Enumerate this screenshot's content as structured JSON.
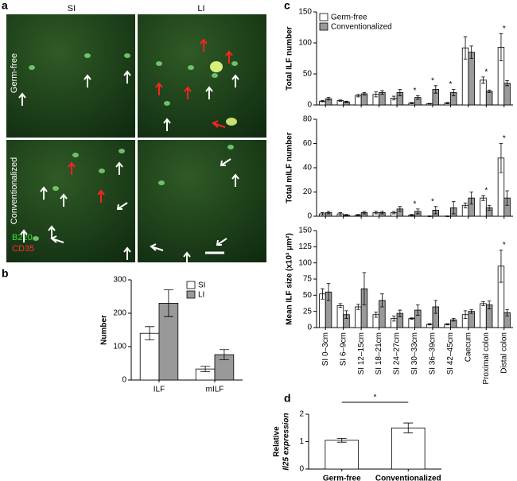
{
  "panel_labels": [
    "a",
    "b",
    "c",
    "d"
  ],
  "panel_a": {
    "columns": [
      "SI",
      "LI"
    ],
    "rows": [
      "Germ-free",
      "Conventionalized"
    ],
    "stains": [
      "B220",
      "CD35"
    ]
  },
  "chart_data": [
    {
      "type": "bar",
      "ylabel": [
        "Number"
      ],
      "categories": [
        "ILF",
        "mILF"
      ],
      "series": [
        {
          "name": "SI",
          "color": "#ffffff",
          "values": [
            140,
            33
          ],
          "errors": [
            20,
            8
          ]
        },
        {
          "name": "LI",
          "color": "#999999",
          "values": [
            230,
            76
          ],
          "errors": [
            40,
            15
          ]
        }
      ],
      "ylim": [
        0,
        300
      ],
      "yticks": [
        0,
        100,
        200,
        300
      ],
      "legend": "upper right"
    },
    {
      "type": "bar",
      "ylabel": [
        "Total ILF number"
      ],
      "series": [
        {
          "name": "Germ-free",
          "color": "#ffffff",
          "values": [
            6,
            7,
            15,
            17,
            11,
            3,
            2,
            3,
            92,
            40,
            93
          ],
          "errors": [
            1,
            1,
            2,
            4,
            3,
            1,
            0.5,
            1,
            18,
            5,
            22
          ]
        },
        {
          "name": "Conventionalized",
          "color": "#999999",
          "values": [
            10,
            5,
            18,
            20,
            20,
            12,
            25,
            20,
            85,
            22,
            35
          ],
          "errors": [
            2,
            1,
            2,
            3,
            5,
            3,
            6,
            5,
            10,
            2,
            4
          ]
        }
      ],
      "significance": [
        null,
        null,
        null,
        null,
        null,
        "*",
        "*",
        "*",
        null,
        "*",
        "*"
      ],
      "ylim": [
        0,
        150
      ],
      "yticks": [
        0,
        50,
        100,
        150
      ],
      "legend": "upper left"
    },
    {
      "type": "bar",
      "ylabel": [
        "Total mILF number"
      ],
      "series": [
        {
          "color": "#ffffff",
          "values": [
            2,
            2,
            1,
            3,
            3,
            1,
            0,
            0,
            9,
            15,
            48
          ],
          "errors": [
            1,
            1,
            0.5,
            1,
            1,
            0.5,
            0.3,
            0.3,
            2,
            2,
            12
          ]
        },
        {
          "color": "#999999",
          "values": [
            3,
            1,
            3,
            3,
            6,
            4,
            5,
            7,
            15,
            7,
            15
          ],
          "errors": [
            1,
            0.5,
            1,
            1,
            2,
            2,
            3,
            5,
            5,
            2,
            6
          ]
        }
      ],
      "significance": [
        null,
        null,
        null,
        null,
        null,
        "*",
        "*",
        null,
        null,
        "*",
        "*"
      ],
      "ylim": [
        0,
        80
      ],
      "yticks": [
        0,
        20,
        40,
        60,
        80
      ]
    },
    {
      "type": "bar",
      "ylabel": [
        "Mean ILF size (x10³ μm²)"
      ],
      "categories": [
        "SI 0–3cm",
        "SI 6–9cm",
        "SI 12–15cm",
        "SI 18–21cm",
        "SI 24–27cm",
        "SI 30–33cm",
        "SI 36–39cm",
        "SI 42–45cm",
        "Caecum",
        "Proximal colon",
        "Distal colon"
      ],
      "series": [
        {
          "color": "#ffffff",
          "values": [
            52,
            34,
            32,
            20,
            14,
            14,
            5,
            5,
            20,
            37,
            95
          ],
          "errors": [
            8,
            3,
            4,
            4,
            4,
            1,
            1,
            1,
            6,
            3,
            25
          ]
        },
        {
          "color": "#999999",
          "values": [
            55,
            20,
            60,
            42,
            22,
            27,
            32,
            12,
            25,
            35,
            23
          ],
          "errors": [
            13,
            6,
            25,
            10,
            5,
            8,
            10,
            2,
            3,
            6,
            5
          ]
        }
      ],
      "significance": [
        null,
        null,
        null,
        null,
        null,
        null,
        null,
        null,
        null,
        null,
        "*"
      ],
      "ylim": [
        0,
        150
      ],
      "yticks": [
        0,
        25,
        50,
        75,
        100,
        125,
        150
      ]
    },
    {
      "type": "bar",
      "ylabel": [
        "Relative",
        "Il25 expression"
      ],
      "categories": [
        "Germ-free",
        "Conventionalized"
      ],
      "series": [
        {
          "color": "#ffffff",
          "values": [
            1.05,
            1.5
          ],
          "errors": [
            0.07,
            0.18
          ]
        }
      ],
      "annotation": "*",
      "ylim": [
        0,
        2
      ],
      "yticks": [
        0,
        1,
        2
      ]
    }
  ]
}
